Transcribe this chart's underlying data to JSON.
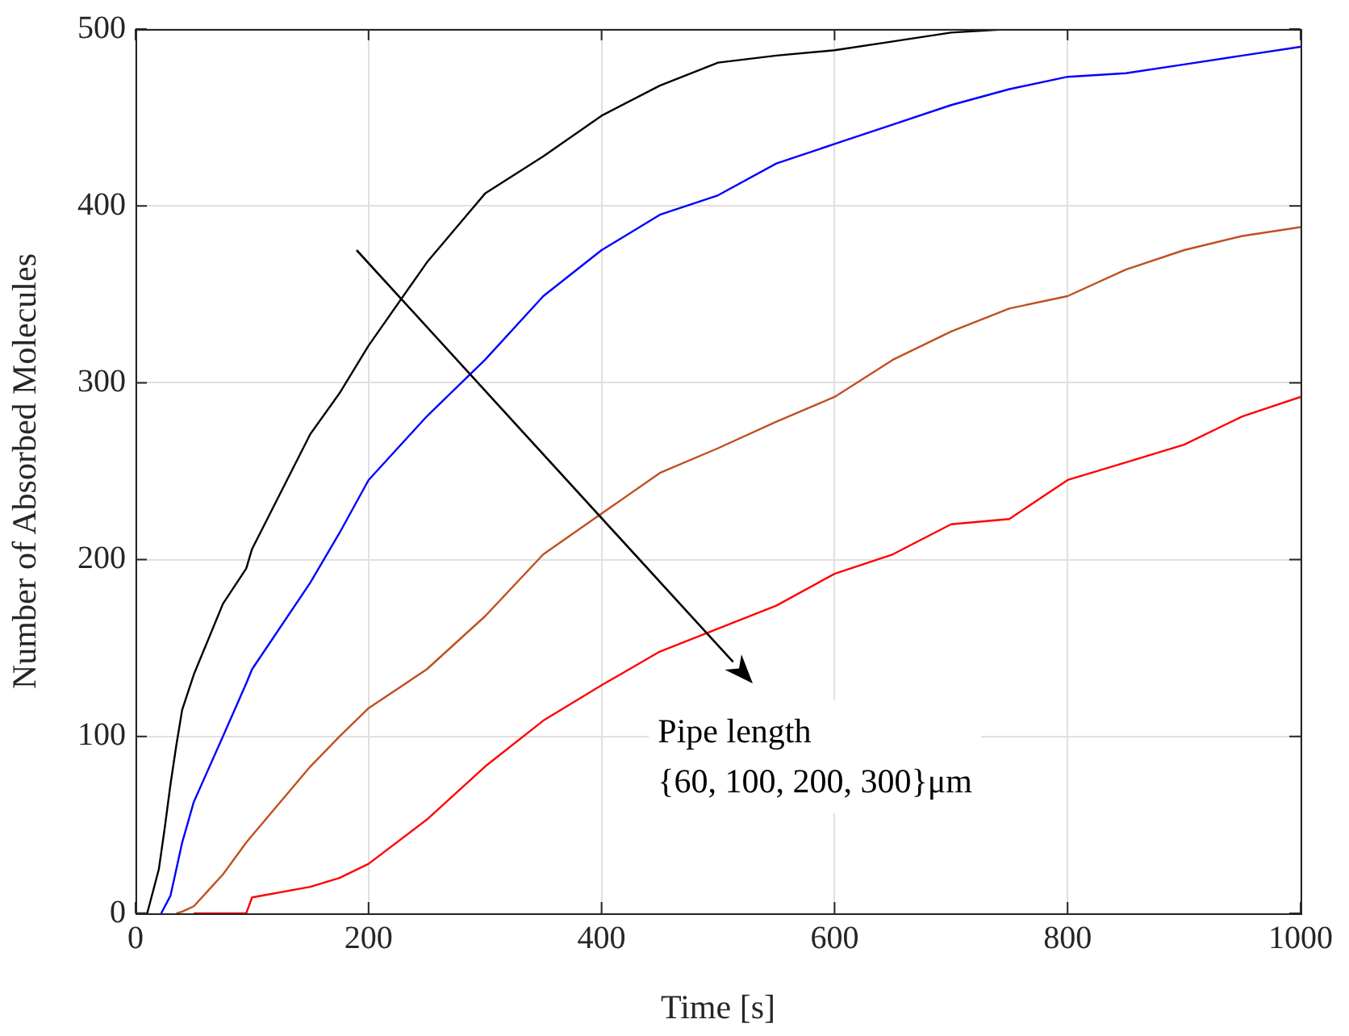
{
  "chart_data": {
    "type": "line",
    "xlabel": "Time [s]",
    "ylabel": "Number of Absorbed Molecules",
    "x": [
      0,
      10,
      20,
      25,
      30,
      35,
      40,
      50,
      75,
      95,
      100,
      150,
      175,
      200,
      250,
      300,
      350,
      400,
      450,
      500,
      550,
      600,
      650,
      700,
      750,
      800,
      850,
      900,
      950,
      1000
    ],
    "series": [
      {
        "color": "#000000",
        "values": [
          0,
          0,
          25,
          48,
          73,
          95,
          115,
          135,
          175,
          195,
          206,
          271,
          294,
          321,
          368,
          407,
          428,
          451,
          468,
          481,
          485,
          488,
          493,
          498,
          500,
          500,
          500,
          500,
          500,
          500
        ]
      },
      {
        "color": "#0000ff",
        "x": [
          22,
          30,
          35,
          40,
          50,
          75,
          95,
          100,
          150,
          175,
          200,
          250,
          300,
          350,
          400,
          450,
          500,
          550,
          600,
          650,
          700,
          750,
          800,
          850,
          900,
          950,
          1000
        ],
        "values": [
          0,
          10,
          25,
          40,
          63,
          100,
          130,
          138,
          187,
          215,
          245,
          281,
          313,
          349,
          375,
          395,
          406,
          424,
          435,
          446,
          457,
          466,
          473,
          475,
          480,
          485,
          490
        ]
      },
      {
        "color": "#c0501f",
        "x": [
          35,
          40,
          50,
          75,
          95,
          100,
          150,
          175,
          200,
          250,
          300,
          350,
          400,
          450,
          500,
          550,
          600,
          650,
          700,
          750,
          800,
          850,
          900,
          950,
          1000
        ],
        "values": [
          0,
          1,
          4,
          22,
          40,
          44,
          83,
          100,
          116,
          138,
          168,
          203,
          226,
          249,
          263,
          278,
          292,
          313,
          329,
          342,
          349,
          364,
          375,
          383,
          388
        ]
      },
      {
        "color": "#ff0000",
        "x": [
          50,
          95,
          100,
          150,
          175,
          200,
          250,
          300,
          350,
          400,
          450,
          500,
          550,
          600,
          650,
          700,
          750,
          800,
          850,
          900,
          950,
          1000
        ],
        "values": [
          0,
          0,
          9,
          15,
          20,
          28,
          53,
          83,
          109,
          129,
          148,
          161,
          174,
          192,
          203,
          220,
          223,
          245,
          255,
          265,
          281,
          292
        ]
      }
    ],
    "xlim": [
      0,
      1000
    ],
    "xticks": [
      0,
      200,
      400,
      600,
      800,
      1000
    ],
    "ylim": [
      0,
      500
    ],
    "yticks": [
      0,
      100,
      200,
      300,
      400,
      500
    ],
    "grid": true,
    "legend": false,
    "annotations": [
      "Pipe length\n{60, 100, 200, 300}μm"
    ]
  }
}
